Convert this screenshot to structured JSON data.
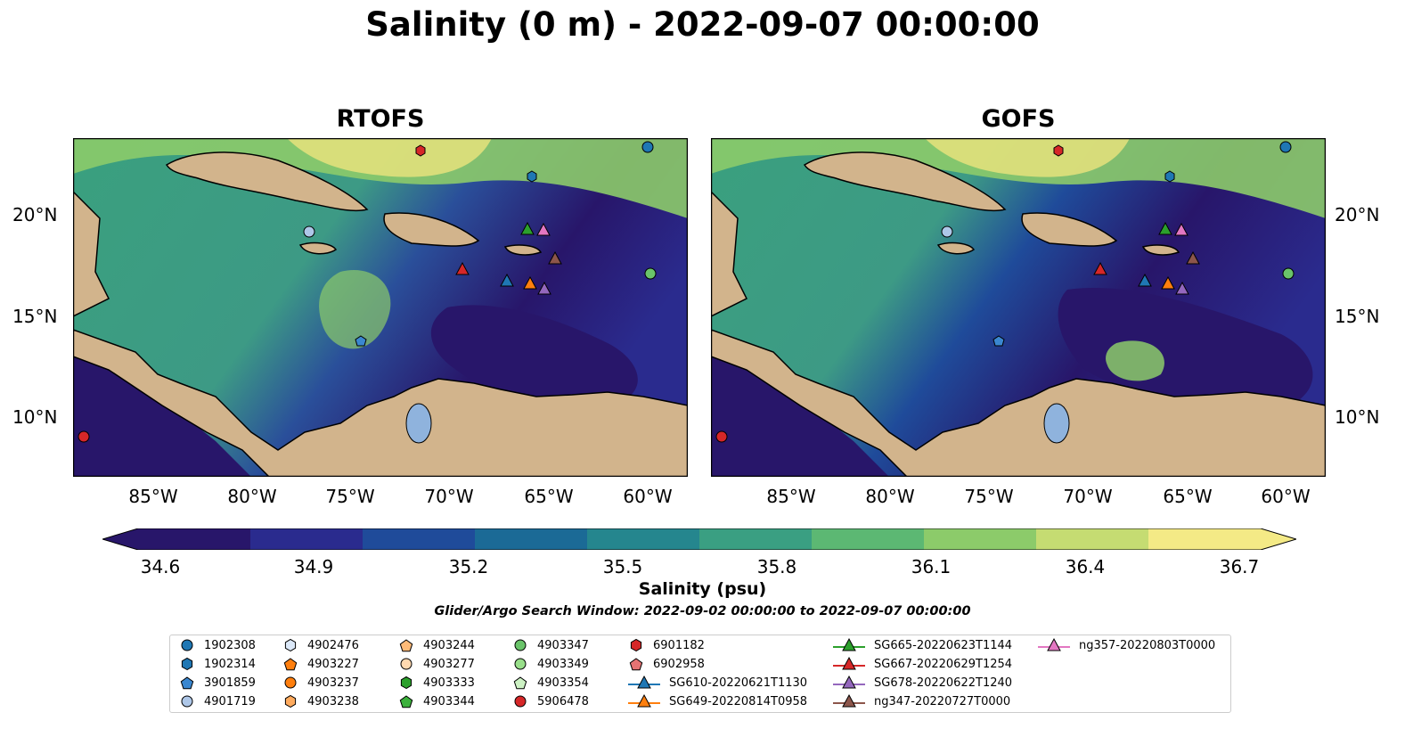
{
  "title": "Salinity (0 m) - 2022-09-07 00:00:00",
  "panels": [
    {
      "title": "RTOFS"
    },
    {
      "title": "GOFS"
    }
  ],
  "axes": {
    "lat_ticks": [
      "20°N",
      "15°N",
      "10°N"
    ],
    "lon_ticks": [
      "85°W",
      "80°W",
      "75°W",
      "70°W",
      "65°W",
      "60°W"
    ]
  },
  "colorbar": {
    "label": "Salinity (psu)",
    "ticks": [
      "34.6",
      "34.9",
      "35.2",
      "35.5",
      "35.8",
      "36.1",
      "36.4",
      "36.7"
    ],
    "colormap": [
      "#28166a",
      "#2a2b8e",
      "#1f4b9a",
      "#1b6a96",
      "#25868e",
      "#3a9f82",
      "#5cb873",
      "#8ccb6a",
      "#c5dc72",
      "#f4ea86"
    ]
  },
  "search_window": "Glider/Argo Search Window: 2022-09-02 00:00:00 to 2022-09-07 00:00:00",
  "legend": {
    "items": [
      {
        "label": "1902308",
        "marker": "circle",
        "color": "#1f77b4"
      },
      {
        "label": "1902314",
        "marker": "hexagon",
        "color": "#1f77b4"
      },
      {
        "label": "3901859",
        "marker": "pentagon",
        "color": "#3a87d0"
      },
      {
        "label": "4901719",
        "marker": "circle",
        "color": "#aec7e8"
      },
      {
        "label": "4902476",
        "marker": "hexagon",
        "color": "#dbe8f8"
      },
      {
        "label": "4903227",
        "marker": "pentagon",
        "color": "#ff7f0e"
      },
      {
        "label": "4903237",
        "marker": "circle",
        "color": "#ff7f0e"
      },
      {
        "label": "4903238",
        "marker": "hexagon",
        "color": "#ffab5e"
      },
      {
        "label": "4903244",
        "marker": "pentagon",
        "color": "#ffbb78"
      },
      {
        "label": "4903277",
        "marker": "circle",
        "color": "#ffd9b0"
      },
      {
        "label": "4903333",
        "marker": "hexagon",
        "color": "#2ca02c"
      },
      {
        "label": "4903344",
        "marker": "pentagon",
        "color": "#3cb13c"
      },
      {
        "label": "4903347",
        "marker": "circle",
        "color": "#6ac46a"
      },
      {
        "label": "4903349",
        "marker": "circle",
        "color": "#98df8a"
      },
      {
        "label": "4903354",
        "marker": "pentagon",
        "color": "#cdf2c4"
      },
      {
        "label": "5906478",
        "marker": "circle",
        "color": "#d62728"
      },
      {
        "label": "6901182",
        "marker": "hexagon",
        "color": "#d62728"
      },
      {
        "label": "6902958",
        "marker": "pentagon",
        "color": "#e57373"
      },
      {
        "label": "SG610-20220621T1130",
        "marker": "triangle-line",
        "color": "#1f77b4"
      },
      {
        "label": "SG649-20220814T0958",
        "marker": "triangle-line",
        "color": "#ff7f0e"
      },
      {
        "label": "SG665-20220623T1144",
        "marker": "triangle-line",
        "color": "#2ca02c"
      },
      {
        "label": "SG667-20220629T1254",
        "marker": "triangle-line",
        "color": "#d62728"
      },
      {
        "label": "SG678-20220622T1240",
        "marker": "triangle-line",
        "color": "#9467bd"
      },
      {
        "label": "ng347-20220727T0000",
        "marker": "triangle-line",
        "color": "#8c564b"
      },
      {
        "label": "ng357-20220803T0000",
        "marker": "triangle-line",
        "color": "#e377c2"
      }
    ]
  },
  "colors": {
    "land": "#d2b48c",
    "ocean_deep": "#28166a",
    "lake": "#8fb3dd"
  }
}
